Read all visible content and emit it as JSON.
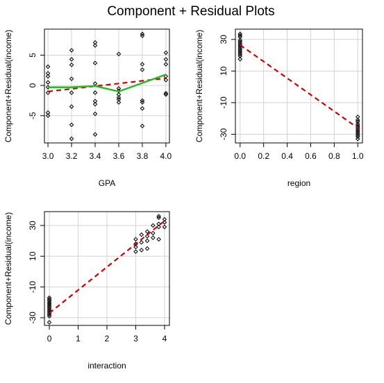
{
  "title": "Component + Residual Plots",
  "colors": {
    "fit": "#cc0000",
    "smooth": "#22bb22",
    "grid": "#d3d3d3",
    "points": "#000000"
  },
  "chart_data": [
    {
      "type": "scatter",
      "xlabel": "GPA",
      "ylabel": "Component+Residual(income)",
      "xlim": [
        2.97,
        4.03
      ],
      "ylim": [
        -9.5,
        9.3
      ],
      "xticks": [
        "3.0",
        "3.2",
        "3.4",
        "3.6",
        "3.8",
        "4.0"
      ],
      "yticks": [
        "-5",
        "0",
        "5"
      ],
      "points": [
        [
          3.0,
          3.1
        ],
        [
          3.0,
          2.0
        ],
        [
          3.0,
          1.5
        ],
        [
          3.0,
          0.5
        ],
        [
          3.0,
          -0.3
        ],
        [
          3.0,
          -1.2
        ],
        [
          3.0,
          -4.5
        ],
        [
          3.0,
          -5.0
        ],
        [
          3.2,
          5.8
        ],
        [
          3.2,
          4.3
        ],
        [
          3.2,
          3.4
        ],
        [
          3.2,
          1.1
        ],
        [
          3.2,
          -1.2
        ],
        [
          3.2,
          -3.5
        ],
        [
          3.2,
          -6.5
        ],
        [
          3.2,
          -8.8
        ],
        [
          3.4,
          7.1
        ],
        [
          3.4,
          6.6
        ],
        [
          3.4,
          3.7
        ],
        [
          3.4,
          0.3
        ],
        [
          3.4,
          -1.2
        ],
        [
          3.4,
          -2.6
        ],
        [
          3.4,
          -3.1
        ],
        [
          3.4,
          -4.7
        ],
        [
          3.4,
          -8.1
        ],
        [
          3.6,
          5.2
        ],
        [
          3.6,
          -0.5
        ],
        [
          3.6,
          -0.9
        ],
        [
          3.6,
          -1.5
        ],
        [
          3.6,
          -2.0
        ],
        [
          3.6,
          -2.3
        ],
        [
          3.6,
          -2.8
        ],
        [
          3.8,
          8.5
        ],
        [
          3.8,
          8.2
        ],
        [
          3.8,
          3.5
        ],
        [
          3.8,
          2.6
        ],
        [
          3.8,
          -2.5
        ],
        [
          3.8,
          -2.8
        ],
        [
          3.8,
          -3.8
        ],
        [
          3.8,
          -6.7
        ],
        [
          4.0,
          5.4
        ],
        [
          4.0,
          4.3
        ],
        [
          4.0,
          3.5
        ],
        [
          4.0,
          1.5
        ],
        [
          4.0,
          0.9
        ],
        [
          4.0,
          -1.3
        ],
        [
          4.0,
          -1.5
        ]
      ],
      "fit_line": [
        [
          3.0,
          -1.0
        ],
        [
          4.0,
          1.2
        ]
      ],
      "smooth_line": [
        [
          3.0,
          -0.3
        ],
        [
          3.2,
          -0.3
        ],
        [
          3.4,
          -0.1
        ],
        [
          3.6,
          -1.0
        ],
        [
          3.8,
          0.4
        ],
        [
          4.0,
          1.8
        ]
      ]
    },
    {
      "type": "scatter",
      "xlabel": "region",
      "ylabel": "Component+Residual(income)",
      "xlim": [
        -0.04,
        1.04
      ],
      "ylim": [
        -35.5,
        36.5
      ],
      "xticks": [
        "0.0",
        "0.2",
        "0.4",
        "0.6",
        "0.8",
        "1.0"
      ],
      "yticks": [
        "-30",
        "-10",
        "10",
        "30"
      ],
      "points": [
        [
          0,
          33.5
        ],
        [
          0,
          32.5
        ],
        [
          0,
          31.5
        ],
        [
          0,
          29.5
        ],
        [
          0,
          28.5
        ],
        [
          0,
          27.5
        ],
        [
          0,
          26.5
        ],
        [
          0,
          25.5
        ],
        [
          0,
          24.5
        ],
        [
          0,
          23.5
        ],
        [
          0,
          22.5
        ],
        [
          0,
          21.5
        ],
        [
          0,
          20.5
        ],
        [
          0,
          19.5
        ],
        [
          0,
          17.5
        ],
        [
          1,
          -19
        ],
        [
          1,
          -21
        ],
        [
          1,
          -22
        ],
        [
          1,
          -23.5
        ],
        [
          1,
          -24.5
        ],
        [
          1,
          -25.5
        ],
        [
          1,
          -26.5
        ],
        [
          1,
          -27.5
        ],
        [
          1,
          -28.5
        ],
        [
          1,
          -29.5
        ],
        [
          1,
          -30.5
        ],
        [
          1,
          -31.5
        ],
        [
          1,
          -33
        ]
      ],
      "fit_line": [
        [
          0,
          26.5
        ],
        [
          1,
          -26.0
        ]
      ]
    },
    {
      "type": "scatter",
      "xlabel": "interaction",
      "ylabel": "Component+Residual(income)",
      "xlim": [
        -0.17,
        4.17
      ],
      "ylim": [
        -35,
        39
      ],
      "xticks": [
        "0",
        "1",
        "2",
        "3",
        "4"
      ],
      "yticks": [
        "-30",
        "-10",
        "10",
        "30"
      ],
      "points": [
        [
          0,
          -17
        ],
        [
          0,
          -18
        ],
        [
          0,
          -19
        ],
        [
          0,
          -20
        ],
        [
          0,
          -21
        ],
        [
          0,
          -22
        ],
        [
          0,
          -23
        ],
        [
          0,
          -24
        ],
        [
          0,
          -25
        ],
        [
          0,
          -26
        ],
        [
          0,
          -27
        ],
        [
          0,
          -28
        ],
        [
          0,
          -29
        ],
        [
          0,
          -33
        ],
        [
          3.0,
          21
        ],
        [
          3.0,
          18
        ],
        [
          3.0,
          16
        ],
        [
          3.0,
          13
        ],
        [
          3.2,
          24
        ],
        [
          3.2,
          19
        ],
        [
          3.2,
          14
        ],
        [
          3.4,
          26
        ],
        [
          3.4,
          23
        ],
        [
          3.4,
          20
        ],
        [
          3.4,
          15
        ],
        [
          3.6,
          30
        ],
        [
          3.6,
          25
        ],
        [
          3.6,
          22
        ],
        [
          3.8,
          36
        ],
        [
          3.8,
          35
        ],
        [
          3.8,
          31
        ],
        [
          3.8,
          29
        ],
        [
          3.8,
          21
        ],
        [
          4.0,
          34
        ],
        [
          4.0,
          32
        ],
        [
          4.0,
          29
        ]
      ],
      "fit_line": [
        [
          0,
          -27
        ],
        [
          4.0,
          33
        ]
      ]
    }
  ]
}
